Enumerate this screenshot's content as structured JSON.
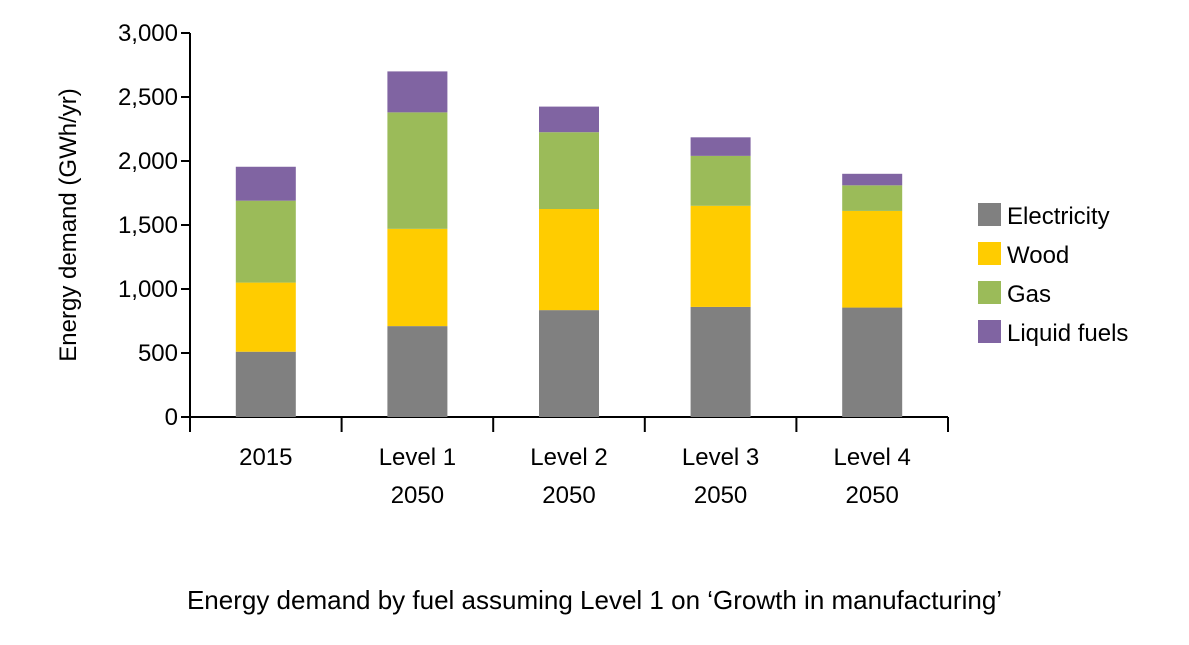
{
  "caption": "Energy demand by fuel assuming Level 1 on ‘Growth in manufacturing’",
  "chart_data": {
    "type": "bar",
    "stacked": true,
    "title": "",
    "ylabel": "Energy demand (GWh/yr)",
    "xlabel": "",
    "ylim": [
      0,
      3000
    ],
    "yticks": [
      0,
      500,
      1000,
      1500,
      2000,
      2500,
      3000
    ],
    "ytick_labels": [
      "0",
      "500",
      "1,000",
      "1,500",
      "2,000",
      "2,500",
      "3,000"
    ],
    "categories": [
      [
        "2015"
      ],
      [
        "Level 1",
        "2050"
      ],
      [
        "Level 2",
        "2050"
      ],
      [
        "Level 3",
        "2050"
      ],
      [
        "Level 4",
        "2050"
      ]
    ],
    "series": [
      {
        "name": "Electricity",
        "color": "#808080",
        "values": [
          510,
          710,
          835,
          860,
          855
        ]
      },
      {
        "name": "Wood",
        "color": "#FFCC00",
        "values": [
          540,
          760,
          790,
          790,
          755
        ]
      },
      {
        "name": "Gas",
        "color": "#9BBB59",
        "values": [
          640,
          910,
          600,
          390,
          200
        ]
      },
      {
        "name": "Liquid fuels",
        "color": "#8064A2",
        "values": [
          265,
          320,
          200,
          145,
          90
        ]
      }
    ],
    "legend_position": "right",
    "grid": false
  }
}
